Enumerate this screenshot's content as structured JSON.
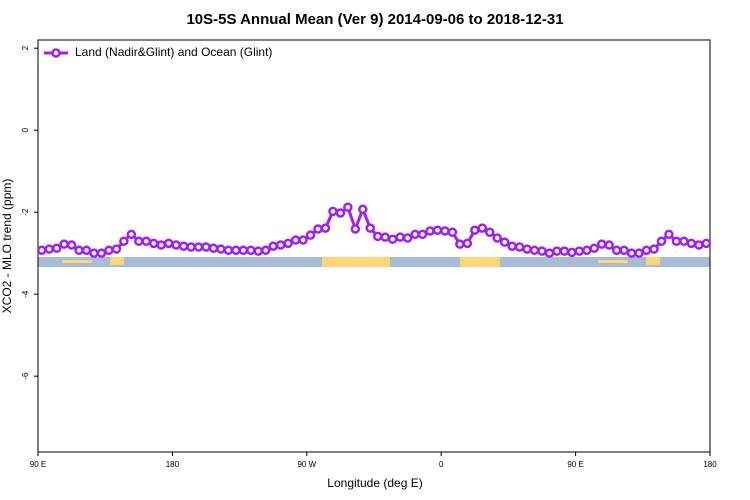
{
  "chart_data": {
    "type": "line",
    "title": "10S-5S Annual Mean (Ver 9)   2014-09-06 to 2018-12-31",
    "x_label": "Longitude (deg E)",
    "y_label": "XCO2 - MLO trend (ppm)",
    "legend_position": "upper left",
    "x": [
      92.5,
      97.5,
      102.5,
      107.5,
      112.5,
      117.5,
      122.5,
      127.5,
      132.5,
      137.5,
      142.5,
      147.5,
      152.5,
      157.5,
      162.5,
      167.5,
      172.5,
      177.5,
      182.5,
      187.5,
      192.5,
      197.5,
      202.5,
      207.5,
      212.5,
      217.5,
      222.5,
      227.5,
      232.5,
      237.5,
      242.5,
      247.5,
      252.5,
      257.5,
      262.5,
      267.5,
      272.5,
      277.5,
      282.5,
      287.5,
      292.5,
      297.5,
      302.5,
      307.5,
      312.5,
      317.5,
      322.5,
      327.5,
      332.5,
      337.5,
      342.5,
      347.5,
      352.5,
      357.5,
      362.5,
      367.5,
      372.5,
      377.5,
      382.5,
      387.5,
      392.5,
      397.5,
      402.5,
      407.5,
      412.5,
      417.5,
      422.5,
      427.5,
      432.5,
      437.5,
      442.5,
      447.5,
      452.5,
      457.5,
      462.5,
      467.5,
      472.5,
      477.5,
      482.5,
      487.5,
      492.5,
      497.5,
      502.5,
      507.5,
      512.5,
      517.5,
      522.5,
      527.5,
      532.5,
      537.5
    ],
    "series": [
      {
        "name": "Land (Nadir&Glint) and Ocean (Glint)",
        "color": "#a020f0",
        "values": [
          -2.93,
          -2.9,
          -2.88,
          -2.78,
          -2.8,
          -2.93,
          -2.93,
          -3.0,
          -3.0,
          -2.93,
          -2.9,
          -2.71,
          -2.54,
          -2.71,
          -2.71,
          -2.76,
          -2.8,
          -2.76,
          -2.8,
          -2.83,
          -2.85,
          -2.85,
          -2.85,
          -2.88,
          -2.9,
          -2.93,
          -2.93,
          -2.93,
          -2.93,
          -2.95,
          -2.93,
          -2.83,
          -2.8,
          -2.76,
          -2.68,
          -2.68,
          -2.56,
          -2.41,
          -2.39,
          -1.98,
          -2.02,
          -1.88,
          -2.41,
          -1.93,
          -2.39,
          -2.59,
          -2.61,
          -2.66,
          -2.61,
          -2.63,
          -2.54,
          -2.54,
          -2.46,
          -2.44,
          -2.46,
          -2.49,
          -2.78,
          -2.76,
          -2.44,
          -2.39,
          -2.49,
          -2.63,
          -2.73,
          -2.83,
          -2.85,
          -2.9,
          -2.93,
          -2.95,
          -3.0,
          -2.95,
          -2.95,
          -2.98,
          -2.95,
          -2.93,
          -2.88,
          -2.78,
          -2.8,
          -2.93,
          -2.93,
          -3.0,
          -3.0,
          -2.93,
          -2.9,
          -2.71,
          -2.54,
          -2.71,
          -2.71,
          -2.76,
          -2.8,
          -2.76
        ]
      }
    ],
    "xlim": [
      90,
      540
    ],
    "xticks": [
      {
        "value": 90,
        "label": "90 E"
      },
      180,
      {
        "value": 270,
        "label": "90 W"
      },
      {
        "value": 360,
        "label": "0"
      },
      {
        "value": 450,
        "label": "90 E"
      },
      {
        "value": 540,
        "label": "180"
      }
    ],
    "ylim": [
      -7.85,
      2.2
    ],
    "yticks": [
      2,
      0,
      -2,
      -4,
      -6
    ]
  }
}
